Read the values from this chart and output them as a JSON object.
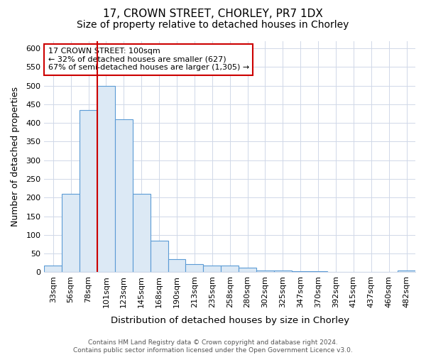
{
  "title1": "17, CROWN STREET, CHORLEY, PR7 1DX",
  "title2": "Size of property relative to detached houses in Chorley",
  "xlabel": "Distribution of detached houses by size in Chorley",
  "ylabel": "Number of detached properties",
  "categories": [
    "33sqm",
    "56sqm",
    "78sqm",
    "101sqm",
    "123sqm",
    "145sqm",
    "168sqm",
    "190sqm",
    "213sqm",
    "235sqm",
    "258sqm",
    "280sqm",
    "302sqm",
    "325sqm",
    "347sqm",
    "370sqm",
    "392sqm",
    "415sqm",
    "437sqm",
    "460sqm",
    "482sqm"
  ],
  "values": [
    18,
    210,
    435,
    500,
    410,
    210,
    85,
    35,
    22,
    18,
    18,
    12,
    5,
    4,
    3,
    2,
    1,
    1,
    1,
    1,
    5
  ],
  "bar_color": "#dce9f5",
  "bar_edge_color": "#5b9bd5",
  "red_line_index": 3,
  "annotation_line1": "17 CROWN STREET: 100sqm",
  "annotation_line2": "← 32% of detached houses are smaller (627)",
  "annotation_line3": "67% of semi-detached houses are larger (1,305) →",
  "annotation_box_facecolor": "#ffffff",
  "annotation_box_edgecolor": "#cc0000",
  "ylim": [
    0,
    620
  ],
  "yticks": [
    0,
    50,
    100,
    150,
    200,
    250,
    300,
    350,
    400,
    450,
    500,
    550,
    600
  ],
  "background_color": "#ffffff",
  "grid_color": "#d0d8e8",
  "footer": "Contains HM Land Registry data © Crown copyright and database right 2024.\nContains public sector information licensed under the Open Government Licence v3.0.",
  "title1_fontsize": 11,
  "title2_fontsize": 10,
  "xlabel_fontsize": 9.5,
  "ylabel_fontsize": 9,
  "tick_fontsize": 8,
  "annotation_fontsize": 8,
  "footer_fontsize": 6.5
}
